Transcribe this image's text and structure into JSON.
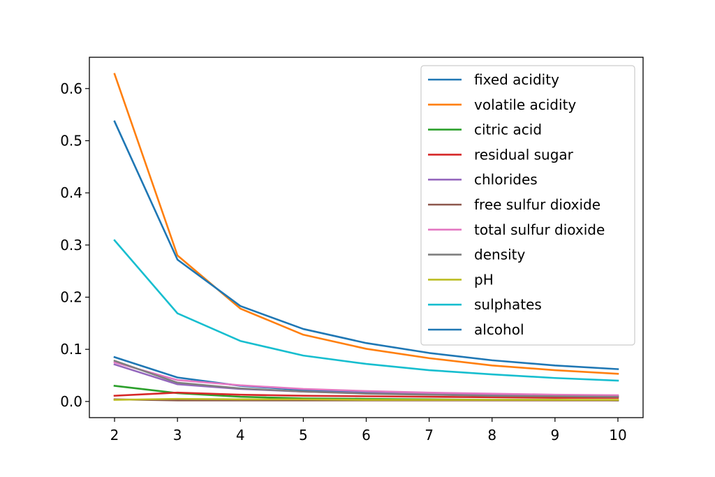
{
  "chart_data": {
    "type": "line",
    "title": "",
    "xlabel": "",
    "ylabel": "",
    "x": [
      2,
      3,
      4,
      5,
      6,
      7,
      8,
      9,
      10
    ],
    "xlim": [
      1.6,
      10.4
    ],
    "ylim": [
      -0.031,
      0.66
    ],
    "xticks": [
      2,
      3,
      4,
      5,
      6,
      7,
      8,
      9,
      10
    ],
    "yticks": [
      0.0,
      0.1,
      0.2,
      0.3,
      0.4,
      0.5,
      0.6
    ],
    "ytick_labels": [
      "0.0",
      "0.1",
      "0.2",
      "0.3",
      "0.4",
      "0.5",
      "0.6"
    ],
    "grid": false,
    "legend_position": "top-right",
    "series": [
      {
        "name": "fixed acidity",
        "color": "#1f77b4",
        "values": [
          0.085,
          0.046,
          0.03,
          0.022,
          0.017,
          0.014,
          0.012,
          0.011,
          0.01
        ]
      },
      {
        "name": "volatile acidity",
        "color": "#ff7f0e",
        "values": [
          0.628,
          0.28,
          0.178,
          0.128,
          0.101,
          0.083,
          0.069,
          0.06,
          0.053
        ]
      },
      {
        "name": "citric acid",
        "color": "#2ca02c",
        "values": [
          0.03,
          0.016,
          0.009,
          0.006,
          0.005,
          0.004,
          0.003,
          0.003,
          0.002
        ]
      },
      {
        "name": "residual sugar",
        "color": "#d62728",
        "values": [
          0.011,
          0.017,
          0.013,
          0.011,
          0.01,
          0.009,
          0.008,
          0.007,
          0.007
        ]
      },
      {
        "name": "chlorides",
        "color": "#9467bd",
        "values": [
          0.071,
          0.033,
          0.024,
          0.019,
          0.016,
          0.014,
          0.012,
          0.011,
          0.01
        ]
      },
      {
        "name": "free sulfur dioxide",
        "color": "#8c564b",
        "values": [
          0.004,
          0.002,
          0.002,
          0.002,
          0.002,
          0.002,
          0.002,
          0.002,
          0.002
        ]
      },
      {
        "name": "total sulfur dioxide",
        "color": "#e377c2",
        "values": [
          0.075,
          0.041,
          0.031,
          0.024,
          0.02,
          0.017,
          0.015,
          0.013,
          0.012
        ]
      },
      {
        "name": "density",
        "color": "#7f7f7f",
        "values": [
          0.078,
          0.036,
          0.025,
          0.019,
          0.015,
          0.013,
          0.011,
          0.01,
          0.009
        ]
      },
      {
        "name": "pH",
        "color": "#bcbd22",
        "values": [
          0.003,
          0.005,
          0.004,
          0.004,
          0.003,
          0.003,
          0.003,
          0.003,
          0.003
        ]
      },
      {
        "name": "sulphates",
        "color": "#17becf",
        "values": [
          0.309,
          0.169,
          0.116,
          0.088,
          0.072,
          0.06,
          0.052,
          0.045,
          0.04
        ]
      },
      {
        "name": "alcohol",
        "color": "#1f77b4",
        "values": [
          0.537,
          0.272,
          0.183,
          0.139,
          0.112,
          0.093,
          0.079,
          0.069,
          0.062
        ]
      }
    ]
  }
}
